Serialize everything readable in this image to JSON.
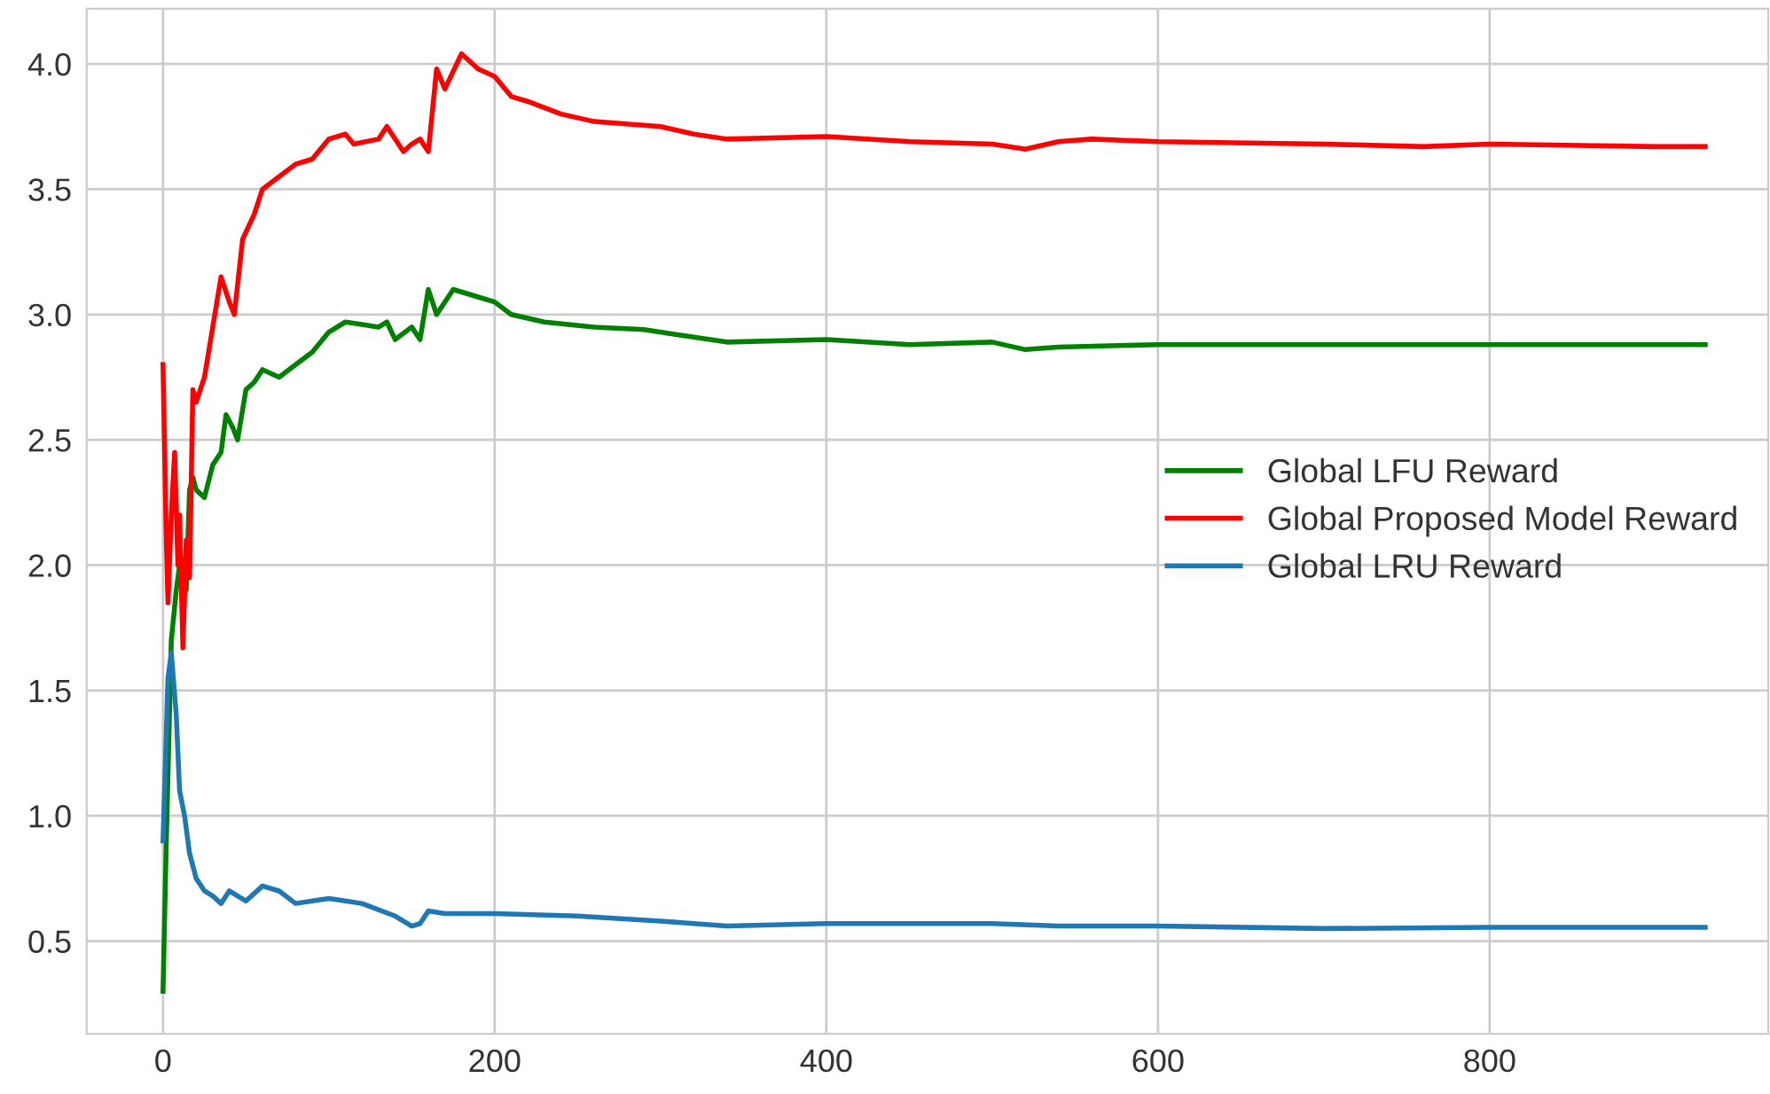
{
  "chart_data": {
    "type": "line",
    "xlim": [
      -46,
      968
    ],
    "ylim": [
      0.13,
      4.22
    ],
    "xticks": [
      0,
      200,
      400,
      600,
      800
    ],
    "yticks": [
      0.5,
      {
        "value": 1,
        "label": "1.0"
      },
      1.5,
      {
        "value": 2,
        "label": "2.0"
      },
      2.5,
      {
        "value": 3,
        "label": "3.0"
      },
      3.5,
      {
        "value": 4,
        "label": "4.0"
      }
    ],
    "grid": true,
    "legend": "right",
    "series": [
      {
        "name": "Global LFU Reward",
        "color": "#008000",
        "x": [
          0,
          2,
          5,
          8,
          10,
          14,
          16,
          18,
          20,
          25,
          30,
          35,
          38,
          42,
          45,
          50,
          55,
          60,
          70,
          80,
          90,
          100,
          110,
          120,
          130,
          135,
          140,
          150,
          155,
          160,
          165,
          175,
          190,
          200,
          210,
          230,
          260,
          290,
          310,
          340,
          400,
          450,
          500,
          520,
          540,
          600,
          700,
          800,
          930
        ],
        "values": [
          0.3,
          0.9,
          1.7,
          1.9,
          2.0,
          1.9,
          2.3,
          2.35,
          2.3,
          2.27,
          2.4,
          2.45,
          2.6,
          2.55,
          2.5,
          2.7,
          2.73,
          2.78,
          2.75,
          2.8,
          2.85,
          2.93,
          2.97,
          2.96,
          2.95,
          2.97,
          2.9,
          2.95,
          2.9,
          3.1,
          3.0,
          3.1,
          3.07,
          3.05,
          3.0,
          2.97,
          2.95,
          2.94,
          2.92,
          2.89,
          2.9,
          2.88,
          2.89,
          2.86,
          2.87,
          2.88,
          2.88,
          2.88,
          2.88
        ]
      },
      {
        "name": "Global Proposed Model Reward",
        "color": "#ff0000",
        "x": [
          0,
          2,
          3,
          5,
          7,
          9,
          10,
          12,
          14,
          16,
          18,
          20,
          25,
          30,
          35,
          40,
          43,
          48,
          55,
          60,
          70,
          80,
          90,
          100,
          110,
          115,
          130,
          135,
          145,
          150,
          155,
          160,
          165,
          170,
          180,
          190,
          200,
          210,
          220,
          240,
          260,
          300,
          320,
          340,
          400,
          450,
          500,
          520,
          540,
          560,
          600,
          700,
          760,
          800,
          900,
          930
        ],
        "values": [
          2.8,
          2.1,
          1.85,
          2.2,
          2.45,
          2.0,
          2.2,
          1.67,
          2.1,
          1.95,
          2.7,
          2.65,
          2.75,
          2.95,
          3.15,
          3.05,
          3.0,
          3.3,
          3.4,
          3.5,
          3.55,
          3.6,
          3.62,
          3.7,
          3.72,
          3.68,
          3.7,
          3.75,
          3.65,
          3.68,
          3.7,
          3.65,
          3.98,
          3.9,
          4.04,
          3.98,
          3.95,
          3.87,
          3.85,
          3.8,
          3.77,
          3.75,
          3.72,
          3.7,
          3.71,
          3.69,
          3.68,
          3.66,
          3.69,
          3.7,
          3.69,
          3.68,
          3.67,
          3.68,
          3.67,
          3.67
        ]
      },
      {
        "name": "Global LRU Reward",
        "color": "#1f77b4",
        "x": [
          0,
          3,
          5,
          8,
          10,
          13,
          16,
          20,
          25,
          30,
          35,
          40,
          45,
          50,
          60,
          70,
          80,
          90,
          100,
          110,
          120,
          140,
          150,
          155,
          160,
          170,
          200,
          250,
          300,
          340,
          400,
          500,
          540,
          600,
          700,
          800,
          930
        ],
        "values": [
          0.9,
          1.55,
          1.65,
          1.4,
          1.1,
          1.0,
          0.85,
          0.75,
          0.7,
          0.68,
          0.65,
          0.7,
          0.68,
          0.66,
          0.72,
          0.7,
          0.65,
          0.66,
          0.67,
          0.66,
          0.65,
          0.6,
          0.56,
          0.57,
          0.62,
          0.61,
          0.61,
          0.6,
          0.58,
          0.56,
          0.57,
          0.57,
          0.56,
          0.56,
          0.55,
          0.555,
          0.555
        ]
      }
    ]
  }
}
